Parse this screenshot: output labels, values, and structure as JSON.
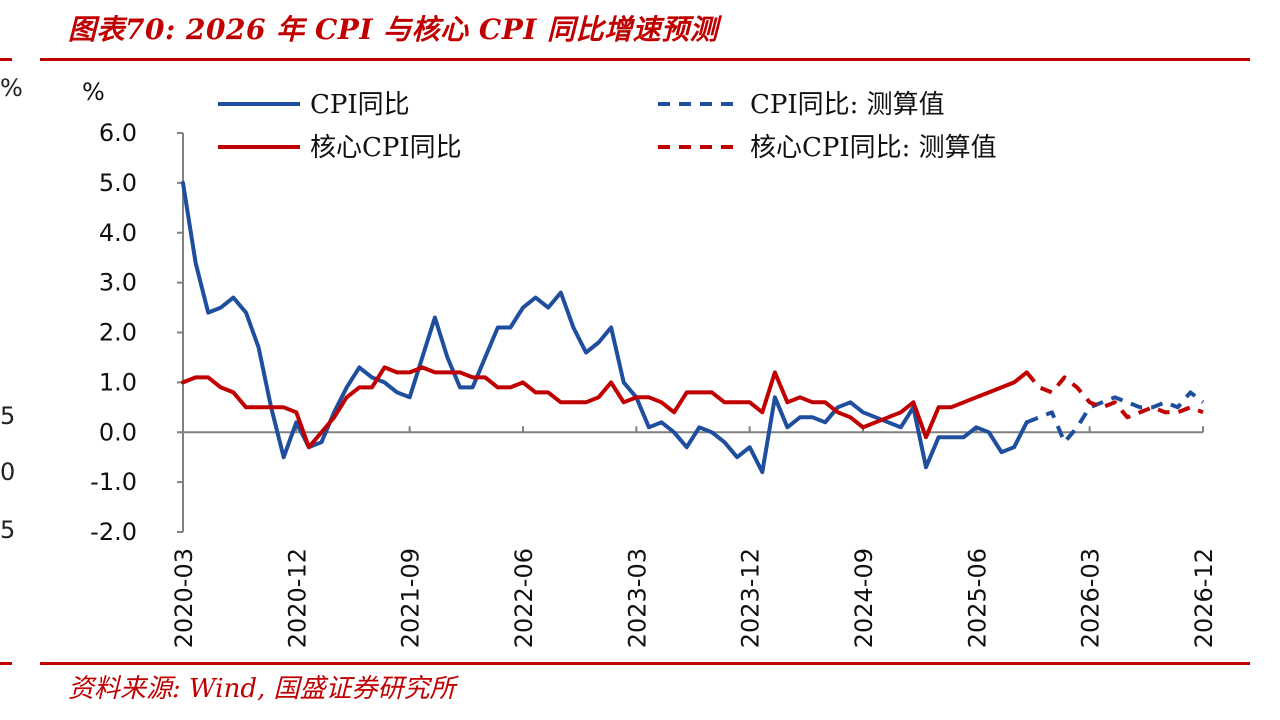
{
  "title": "图表70:  2026 年 CPI 与核心 CPI 同比增速预测",
  "source": "资料来源:  Wind,  国盛证券研究所",
  "edge_fragments": [
    "%",
    "5",
    "0",
    "5"
  ],
  "colors": {
    "accent": "#c00000",
    "cpi": "#1f4e9e",
    "core": "#c00000",
    "axis": "#808080"
  },
  "chart_data": {
    "type": "line",
    "ylabel": "%",
    "ylim": [
      -2.0,
      6.0
    ],
    "ytick_labels": [
      "6.0",
      "5.0",
      "4.0",
      "3.0",
      "2.0",
      "1.0",
      "0.0",
      "-1.0",
      "-2.0"
    ],
    "yticks": [
      6,
      5,
      4,
      3,
      2,
      1,
      0,
      -1,
      -2
    ],
    "xlim": [
      "2020-03",
      "2026-12"
    ],
    "xtick_labels": [
      "2020-03",
      "2020-12",
      "2021-09",
      "2022-06",
      "2023-03",
      "2023-12",
      "2024-09",
      "2025-06",
      "2026-03",
      "2026-12"
    ],
    "grid": false,
    "legend_position": "top",
    "series": [
      {
        "name": "CPI同比",
        "style": "solid",
        "color": "#1f4e9e",
        "x": [
          "2020-03",
          "2020-04",
          "2020-05",
          "2020-06",
          "2020-07",
          "2020-08",
          "2020-09",
          "2020-10",
          "2020-11",
          "2020-12",
          "2021-01",
          "2021-02",
          "2021-03",
          "2021-04",
          "2021-05",
          "2021-06",
          "2021-07",
          "2021-08",
          "2021-09",
          "2021-10",
          "2021-11",
          "2021-12",
          "2022-01",
          "2022-02",
          "2022-03",
          "2022-04",
          "2022-05",
          "2022-06",
          "2022-07",
          "2022-08",
          "2022-09",
          "2022-10",
          "2022-11",
          "2022-12",
          "2023-01",
          "2023-02",
          "2023-03",
          "2023-04",
          "2023-05",
          "2023-06",
          "2023-07",
          "2023-08",
          "2023-09",
          "2023-10",
          "2023-11",
          "2023-12",
          "2024-01",
          "2024-02",
          "2024-03",
          "2024-04",
          "2024-05",
          "2024-06",
          "2024-07",
          "2024-08",
          "2024-09",
          "2024-10",
          "2024-11",
          "2024-12",
          "2025-01",
          "2025-02",
          "2025-03",
          "2025-04",
          "2025-05",
          "2025-06",
          "2025-07",
          "2025-08",
          "2025-09",
          "2025-10"
        ],
        "y": [
          5.0,
          3.4,
          2.4,
          2.5,
          2.7,
          2.4,
          1.7,
          0.5,
          -0.5,
          0.2,
          -0.3,
          -0.2,
          0.4,
          0.9,
          1.3,
          1.1,
          1.0,
          0.8,
          0.7,
          1.5,
          2.3,
          1.5,
          0.9,
          0.9,
          1.5,
          2.1,
          2.1,
          2.5,
          2.7,
          2.5,
          2.8,
          2.1,
          1.6,
          1.8,
          2.1,
          1.0,
          0.7,
          0.1,
          0.2,
          0.0,
          -0.3,
          0.1,
          0.0,
          -0.2,
          -0.5,
          -0.3,
          -0.8,
          0.7,
          0.1,
          0.3,
          0.3,
          0.2,
          0.5,
          0.6,
          0.4,
          0.3,
          0.2,
          0.1,
          0.5,
          -0.7,
          -0.1,
          -0.1,
          -0.1,
          0.1,
          0.0,
          -0.4,
          -0.3,
          0.2
        ],
        "dash": false
      },
      {
        "name": "核心CPI同比",
        "style": "solid",
        "color": "#c00000",
        "x": [
          "2020-03",
          "2020-04",
          "2020-05",
          "2020-06",
          "2020-07",
          "2020-08",
          "2020-09",
          "2020-10",
          "2020-11",
          "2020-12",
          "2021-01",
          "2021-02",
          "2021-03",
          "2021-04",
          "2021-05",
          "2021-06",
          "2021-07",
          "2021-08",
          "2021-09",
          "2021-10",
          "2021-11",
          "2021-12",
          "2022-01",
          "2022-02",
          "2022-03",
          "2022-04",
          "2022-05",
          "2022-06",
          "2022-07",
          "2022-08",
          "2022-09",
          "2022-10",
          "2022-11",
          "2022-12",
          "2023-01",
          "2023-02",
          "2023-03",
          "2023-04",
          "2023-05",
          "2023-06",
          "2023-07",
          "2023-08",
          "2023-09",
          "2023-10",
          "2023-11",
          "2023-12",
          "2024-01",
          "2024-02",
          "2024-03",
          "2024-04",
          "2024-05",
          "2024-06",
          "2024-07",
          "2024-08",
          "2024-09",
          "2024-10",
          "2024-11",
          "2024-12",
          "2025-01",
          "2025-02",
          "2025-03",
          "2025-04",
          "2025-05",
          "2025-06",
          "2025-07",
          "2025-08",
          "2025-09",
          "2025-10"
        ],
        "y": [
          1.0,
          1.1,
          1.1,
          0.9,
          0.8,
          0.5,
          0.5,
          0.5,
          0.5,
          0.4,
          -0.3,
          0.0,
          0.3,
          0.7,
          0.9,
          0.9,
          1.3,
          1.2,
          1.2,
          1.3,
          1.2,
          1.2,
          1.2,
          1.1,
          1.1,
          0.9,
          0.9,
          1.0,
          0.8,
          0.8,
          0.6,
          0.6,
          0.6,
          0.7,
          1.0,
          0.6,
          0.7,
          0.7,
          0.6,
          0.4,
          0.8,
          0.8,
          0.8,
          0.6,
          0.6,
          0.6,
          0.4,
          1.2,
          0.6,
          0.7,
          0.6,
          0.6,
          0.4,
          0.3,
          0.1,
          0.2,
          0.3,
          0.4,
          0.6,
          -0.1,
          0.5,
          0.5,
          0.6,
          0.7,
          0.8,
          0.9,
          1.0,
          1.2
        ],
        "dash": false
      },
      {
        "name": "CPI同比: 测算值",
        "style": "dashed",
        "color": "#1f4e9e",
        "x": [
          "2025-10",
          "2025-11",
          "2025-12",
          "2026-01",
          "2026-02",
          "2026-03",
          "2026-04",
          "2026-05",
          "2026-06",
          "2026-07",
          "2026-08",
          "2026-09",
          "2026-10",
          "2026-11",
          "2026-12"
        ],
        "y": [
          0.2,
          0.3,
          0.4,
          -0.2,
          0.1,
          0.5,
          0.6,
          0.7,
          0.6,
          0.5,
          0.5,
          0.6,
          0.5,
          0.8,
          0.6
        ],
        "dash": true
      },
      {
        "name": "核心CPI同比: 测算值",
        "style": "dashed",
        "color": "#c00000",
        "x": [
          "2025-10",
          "2025-11",
          "2025-12",
          "2026-01",
          "2026-02",
          "2026-03",
          "2026-04",
          "2026-05",
          "2026-06",
          "2026-07",
          "2026-08",
          "2026-09",
          "2026-10",
          "2026-11",
          "2026-12"
        ],
        "y": [
          1.2,
          0.9,
          0.8,
          1.1,
          0.9,
          0.6,
          0.5,
          0.6,
          0.3,
          0.4,
          0.5,
          0.4,
          0.4,
          0.5,
          0.4
        ],
        "dash": true
      }
    ]
  }
}
